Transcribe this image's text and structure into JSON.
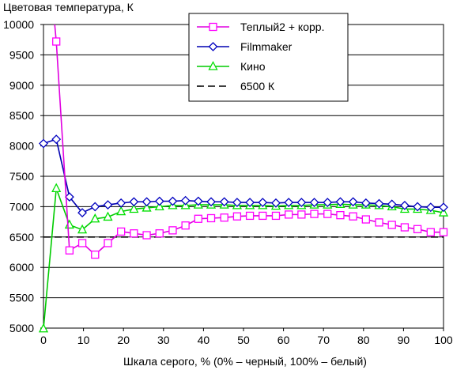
{
  "chart_data": {
    "type": "line",
    "title": "",
    "ylabel": "Цветовая температура, К",
    "xlabel": "Шкала серого, % (0% – черный, 100% – белый)",
    "xlim": [
      0,
      100
    ],
    "ylim": [
      5000,
      10000
    ],
    "xticks": [
      0,
      10,
      20,
      30,
      40,
      50,
      60,
      70,
      80,
      90,
      100
    ],
    "yticks": [
      5000,
      5500,
      6000,
      6500,
      7000,
      7500,
      8000,
      8500,
      9000,
      9500,
      10000
    ],
    "grid": true,
    "legend_position": "top-right",
    "series": [
      {
        "name": "Теплый2 + корр.",
        "color": "#ff00ff",
        "marker": "square",
        "line_color": "#e000e0",
        "x": [
          0,
          3.2,
          6.5,
          9.7,
          12.9,
          16.1,
          19.4,
          22.6,
          25.8,
          29.0,
          32.3,
          35.5,
          38.7,
          41.9,
          45.2,
          48.4,
          51.6,
          54.8,
          58.1,
          61.3,
          64.5,
          67.7,
          71.0,
          74.2,
          77.4,
          80.6,
          83.9,
          87.1,
          90.3,
          93.5,
          96.8,
          100
        ],
        "y": [
          null,
          9720,
          6280,
          6400,
          6210,
          6400,
          6590,
          6560,
          6530,
          6560,
          6610,
          6690,
          6800,
          6810,
          6820,
          6840,
          6850,
          6850,
          6850,
          6870,
          6870,
          6880,
          6880,
          6860,
          6840,
          6790,
          6740,
          6700,
          6660,
          6630,
          6580,
          6580
        ],
        "offscale_start": {
          "x": 0,
          "y": 12000
        }
      },
      {
        "name": "Filmmaker",
        "color": "#0000c0",
        "marker": "diamond",
        "line_color": "#0000b0",
        "x": [
          0,
          3.2,
          6.5,
          9.7,
          12.9,
          16.1,
          19.4,
          22.6,
          25.8,
          29.0,
          32.3,
          35.5,
          38.7,
          41.9,
          45.2,
          48.4,
          51.6,
          54.8,
          58.1,
          61.3,
          64.5,
          67.7,
          71.0,
          74.2,
          77.4,
          80.6,
          83.9,
          87.1,
          90.3,
          93.5,
          96.8,
          100
        ],
        "y": [
          8040,
          8110,
          7160,
          6900,
          7000,
          7030,
          7060,
          7080,
          7080,
          7090,
          7090,
          7100,
          7090,
          7080,
          7080,
          7070,
          7070,
          7070,
          7060,
          7070,
          7070,
          7070,
          7070,
          7080,
          7080,
          7060,
          7050,
          7040,
          7020,
          7000,
          6990,
          6990
        ]
      },
      {
        "name": "Кино",
        "color": "#00e000",
        "marker": "triangle",
        "line_color": "#00cc00",
        "x": [
          0,
          3.2,
          6.5,
          9.7,
          12.9,
          16.1,
          19.4,
          22.6,
          25.8,
          29.0,
          32.3,
          35.5,
          38.7,
          41.9,
          45.2,
          48.4,
          51.6,
          54.8,
          58.1,
          61.3,
          64.5,
          67.7,
          71.0,
          74.2,
          77.4,
          80.6,
          83.9,
          87.1,
          90.3,
          93.5,
          96.8,
          100
        ],
        "y": [
          4990,
          7300,
          6700,
          6620,
          6800,
          6830,
          6920,
          6960,
          6980,
          7000,
          7020,
          7020,
          7030,
          7030,
          7030,
          7020,
          7020,
          7020,
          7010,
          7020,
          7020,
          7030,
          7030,
          7040,
          7030,
          7030,
          7020,
          7000,
          6960,
          6960,
          6940,
          6900
        ]
      },
      {
        "name": "6500 К",
        "color": "#000000",
        "style": "dashed",
        "x": [
          0,
          100
        ],
        "y": [
          6500,
          6500
        ]
      }
    ]
  }
}
